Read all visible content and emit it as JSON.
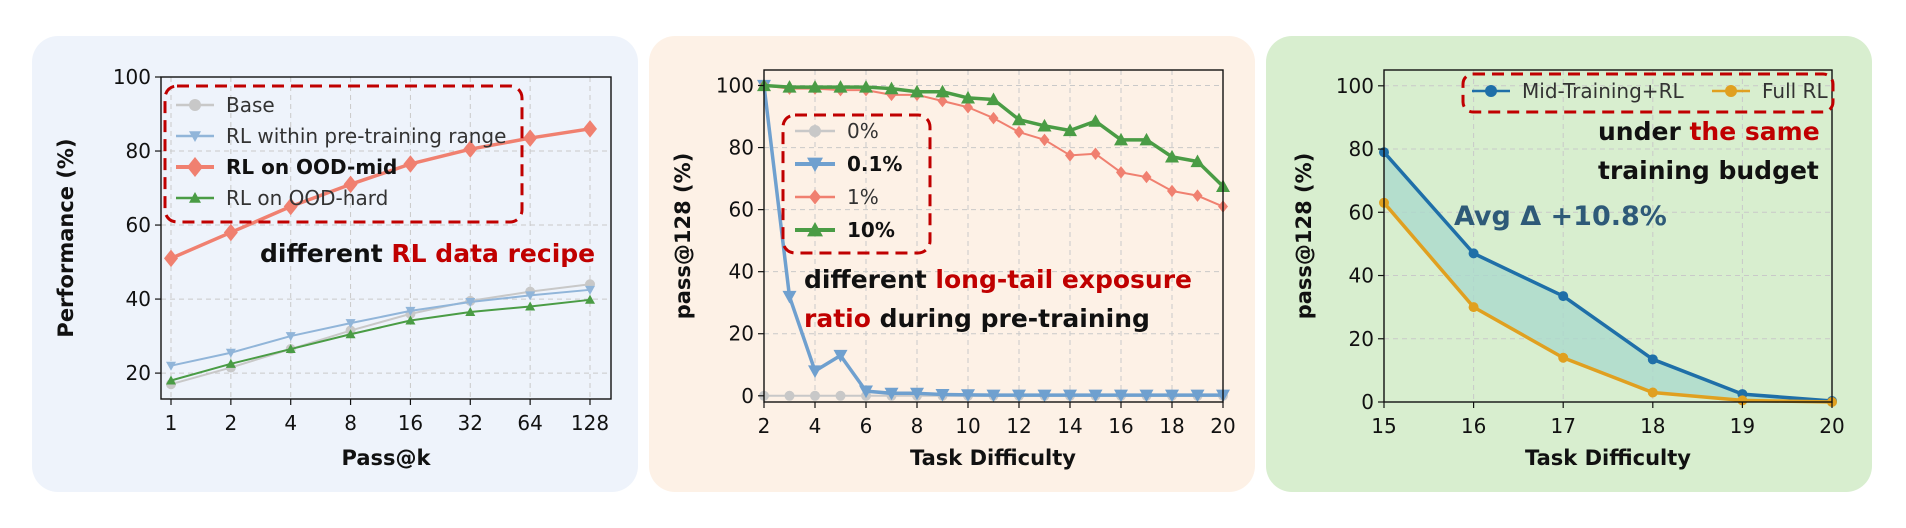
{
  "colors": {
    "panel1_bg": "#eef3fb",
    "panel2_bg": "#fdf1e6",
    "panel3_bg": "#d8eecf",
    "highlight": "#c00000",
    "text_dark": "#111111"
  },
  "chart_data": [
    {
      "type": "line",
      "xlabel": "Pass@k",
      "ylabel": "Performance (%)",
      "categories": [
        "1",
        "2",
        "4",
        "8",
        "16",
        "32",
        "64",
        "128"
      ],
      "yticks": [
        20,
        40,
        60,
        80,
        100
      ],
      "ylim": [
        13,
        100
      ],
      "series": [
        {
          "name": "Base",
          "color": "#c8c8c8",
          "marker": "circle",
          "bold": false,
          "values": [
            17,
            21.5,
            26.5,
            31.5,
            36,
            39.5,
            42,
            44
          ]
        },
        {
          "name": "RL within pre-training range",
          "color": "#91b5d9",
          "marker": "triangle-down",
          "bold": false,
          "values": [
            22,
            25.5,
            30,
            33.5,
            36.8,
            39.2,
            41,
            42.5
          ]
        },
        {
          "name": "RL on OOD-mid",
          "color": "#f08070",
          "marker": "diamond",
          "bold": true,
          "values": [
            51,
            58,
            65,
            71,
            76.5,
            80.5,
            83.5,
            86
          ]
        },
        {
          "name": "RL on OOD-hard",
          "color": "#4a9c45",
          "marker": "triangle-up",
          "bold": false,
          "values": [
            18,
            22.5,
            26.5,
            30.5,
            34.2,
            36.5,
            38,
            39.8
          ]
        }
      ],
      "annotation": {
        "prefix": "different ",
        "highlight": "RL data recipe"
      }
    },
    {
      "type": "line",
      "xlabel": "Task Difficulty",
      "ylabel": "pass@128 (%)",
      "x": [
        2,
        3,
        4,
        5,
        6,
        7,
        8,
        9,
        10,
        11,
        12,
        13,
        14,
        15,
        16,
        17,
        18,
        19,
        20
      ],
      "xticks": [
        2,
        4,
        6,
        8,
        10,
        12,
        14,
        16,
        18,
        20
      ],
      "yticks": [
        0,
        20,
        40,
        60,
        80,
        100
      ],
      "xlim": [
        2,
        20
      ],
      "ylim": [
        -2,
        105
      ],
      "series": [
        {
          "name": "0%",
          "color": "#c8c8c8",
          "marker": "circle",
          "bold": false,
          "values": [
            0,
            0,
            0,
            0,
            0,
            0,
            0,
            0,
            0,
            0,
            0,
            0,
            0,
            0,
            0,
            0,
            0,
            0,
            0
          ]
        },
        {
          "name": "0.1%",
          "color": "#6fa0cf",
          "marker": "triangle-down",
          "bold": true,
          "values": [
            100,
            32,
            8,
            13,
            1.5,
            0.8,
            0.8,
            0.4,
            0.3,
            0.2,
            0.2,
            0.2,
            0.2,
            0.2,
            0.2,
            0.2,
            0.2,
            0.2,
            0.2
          ]
        },
        {
          "name": "1%",
          "color": "#f08070",
          "marker": "diamond",
          "bold": false,
          "values": [
            100,
            99,
            99,
            98.5,
            98.5,
            97,
            97,
            95,
            93,
            89.5,
            85,
            82.5,
            77.5,
            78,
            72,
            70.5,
            66,
            64.5,
            61
          ]
        },
        {
          "name": "10%",
          "color": "#4a9c45",
          "marker": "triangle-up",
          "bold": true,
          "values": [
            100,
            99.5,
            99.5,
            99.5,
            99.5,
            99,
            98,
            98,
            96,
            95.5,
            89,
            87,
            85.5,
            88.5,
            82.5,
            82.5,
            77,
            75.5,
            67.5
          ]
        }
      ],
      "annotation": {
        "line1_prefix": "different ",
        "line1_highlight": "long-tail exposure",
        "line2_highlight": "ratio",
        "line2_suffix": " during pre-training"
      }
    },
    {
      "type": "area",
      "xlabel": "Task Difficulty",
      "ylabel": "pass@128 (%)",
      "x": [
        15,
        16,
        17,
        18,
        19,
        20
      ],
      "xticks": [
        15,
        16,
        17,
        18,
        19,
        20
      ],
      "yticks": [
        0,
        20,
        40,
        60,
        80,
        100
      ],
      "xlim": [
        15,
        20
      ],
      "ylim": [
        0,
        105
      ],
      "series": [
        {
          "name": "Mid-Training+RL",
          "color": "#1f6fa8",
          "marker": "circle",
          "values": [
            79,
            47,
            33.5,
            13.5,
            2.5,
            0.3
          ]
        },
        {
          "name": "Full RL",
          "color": "#e0a020",
          "marker": "circle",
          "values": [
            63,
            30,
            14,
            3,
            0.5,
            0
          ]
        }
      ],
      "fill_color": "#a8d8cc",
      "delta_label": "Avg Δ +10.8%",
      "annotation": {
        "line1_prefix": "under ",
        "line1_highlight": "the same",
        "line2": "training budget"
      }
    }
  ]
}
